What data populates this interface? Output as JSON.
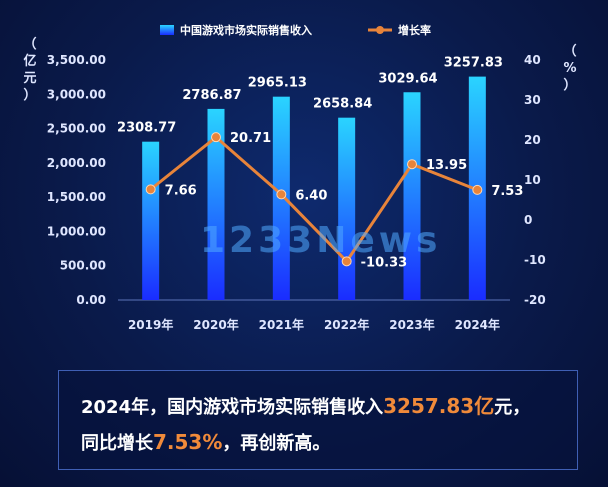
{
  "chart_data": {
    "type": "bar",
    "categories": [
      "2019年",
      "2020年",
      "2021年",
      "2022年",
      "2023年",
      "2024年"
    ],
    "series": [
      {
        "name": "中国游戏市场实际销售收入",
        "type": "bar",
        "values": [
          2308.77,
          2786.87,
          2965.13,
          2658.84,
          3029.64,
          3257.83
        ]
      },
      {
        "name": "增长率",
        "type": "line",
        "values": [
          7.66,
          20.71,
          6.4,
          -10.33,
          13.95,
          7.53
        ]
      }
    ],
    "bar_labels": [
      "2308.77",
      "2786.87",
      "2965.13",
      "2658.84",
      "3029.64",
      "3257.83"
    ],
    "line_labels": [
      "7.66",
      "20.71",
      "6.40",
      "-10.33",
      "13.95",
      "7.53"
    ],
    "y_left": {
      "label": "（亿元）",
      "range": [
        0,
        3500
      ],
      "ticks": [
        "0.00",
        "500.00",
        "1,000.00",
        "1,500.00",
        "2,000.00",
        "2,500.00",
        "3,000.00",
        "3,500.00"
      ]
    },
    "y_right": {
      "label": "（%）",
      "range": [
        -20,
        40
      ],
      "ticks": [
        "-20",
        "-10",
        "0",
        "10",
        "20",
        "30",
        "40"
      ]
    },
    "legend_position": "top-center",
    "grid": false,
    "colors": {
      "bar_top": "#2ad4ff",
      "bar_bottom": "#1a2cff",
      "line": "#e8843a",
      "marker": "#e8843a"
    }
  },
  "summary": {
    "part1": "2024年，国内游戏市场实际销售收入",
    "value1": "3257.83亿",
    "part2": "元，",
    "part3": "同比增长",
    "value2": "7.53%",
    "part4": "，再创新高。"
  },
  "watermark": "1233News"
}
